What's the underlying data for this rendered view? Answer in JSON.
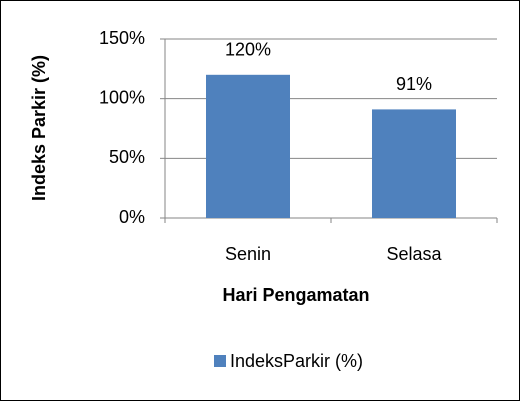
{
  "chart_data": {
    "type": "bar",
    "categories": [
      "Senin",
      "Selasa"
    ],
    "series": [
      {
        "name": "IndeksParkir (%)",
        "color": "#4f81bd",
        "values": [
          120,
          91
        ],
        "value_labels": [
          "120%",
          "91%"
        ]
      }
    ],
    "x_label": "Hari Pengamatan",
    "y_label": "Indeks Parkir (%)",
    "ylim": [
      0,
      150
    ],
    "yticks": [
      {
        "value": 0,
        "label": "0%"
      },
      {
        "value": 50,
        "label": "50%"
      },
      {
        "value": 100,
        "label": "100%"
      },
      {
        "value": 150,
        "label": "150%"
      }
    ],
    "grid": true,
    "legend": "bottom"
  }
}
